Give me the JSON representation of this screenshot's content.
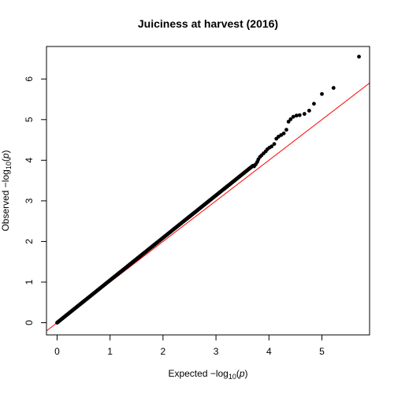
{
  "chart_data": {
    "type": "scatter",
    "title": "Juiciness at harvest (2016)",
    "xlabel": {
      "prefix": "Expected  −log",
      "sub": "10",
      "open": "(",
      "var": "p",
      "close": ")"
    },
    "ylabel": {
      "prefix": "Observed  −log",
      "sub": "10",
      "open": "(",
      "var": "p",
      "close": ")"
    },
    "xlim": [
      -0.2,
      5.9
    ],
    "ylim": [
      -0.3,
      6.8
    ],
    "x_ticks": [
      0,
      1,
      2,
      3,
      4,
      5
    ],
    "y_ticks": [
      0,
      1,
      2,
      3,
      4,
      5,
      6
    ],
    "x_tick_labels": [
      "0",
      "1",
      "2",
      "3",
      "4",
      "5"
    ],
    "y_tick_labels": [
      "0",
      "1",
      "2",
      "3",
      "4",
      "5",
      "6"
    ],
    "reference_line": {
      "intercept": 0,
      "slope": 1,
      "color": "#ff0000"
    },
    "point_color": "#000000",
    "main_series": {
      "x_start": 0.0,
      "x_end": 3.7,
      "slope": 1.045
    },
    "tail_points": [
      {
        "x": 3.72,
        "y": 3.85
      },
      {
        "x": 3.75,
        "y": 3.9
      },
      {
        "x": 3.78,
        "y": 3.96
      },
      {
        "x": 3.8,
        "y": 4.02
      },
      {
        "x": 3.83,
        "y": 4.08
      },
      {
        "x": 3.86,
        "y": 4.12
      },
      {
        "x": 3.9,
        "y": 4.17
      },
      {
        "x": 3.94,
        "y": 4.22
      },
      {
        "x": 3.97,
        "y": 4.27
      },
      {
        "x": 4.01,
        "y": 4.31
      },
      {
        "x": 4.05,
        "y": 4.34
      },
      {
        "x": 4.1,
        "y": 4.4
      },
      {
        "x": 4.14,
        "y": 4.53
      },
      {
        "x": 4.18,
        "y": 4.58
      },
      {
        "x": 4.23,
        "y": 4.62
      },
      {
        "x": 4.28,
        "y": 4.66
      },
      {
        "x": 4.33,
        "y": 4.75
      },
      {
        "x": 4.37,
        "y": 4.95
      },
      {
        "x": 4.41,
        "y": 5.01
      },
      {
        "x": 4.46,
        "y": 5.07
      },
      {
        "x": 4.52,
        "y": 5.1
      },
      {
        "x": 4.58,
        "y": 5.11
      },
      {
        "x": 4.67,
        "y": 5.14
      },
      {
        "x": 4.76,
        "y": 5.22
      },
      {
        "x": 4.85,
        "y": 5.39
      },
      {
        "x": 5.0,
        "y": 5.63
      },
      {
        "x": 5.22,
        "y": 5.78
      },
      {
        "x": 5.7,
        "y": 6.55
      }
    ]
  }
}
